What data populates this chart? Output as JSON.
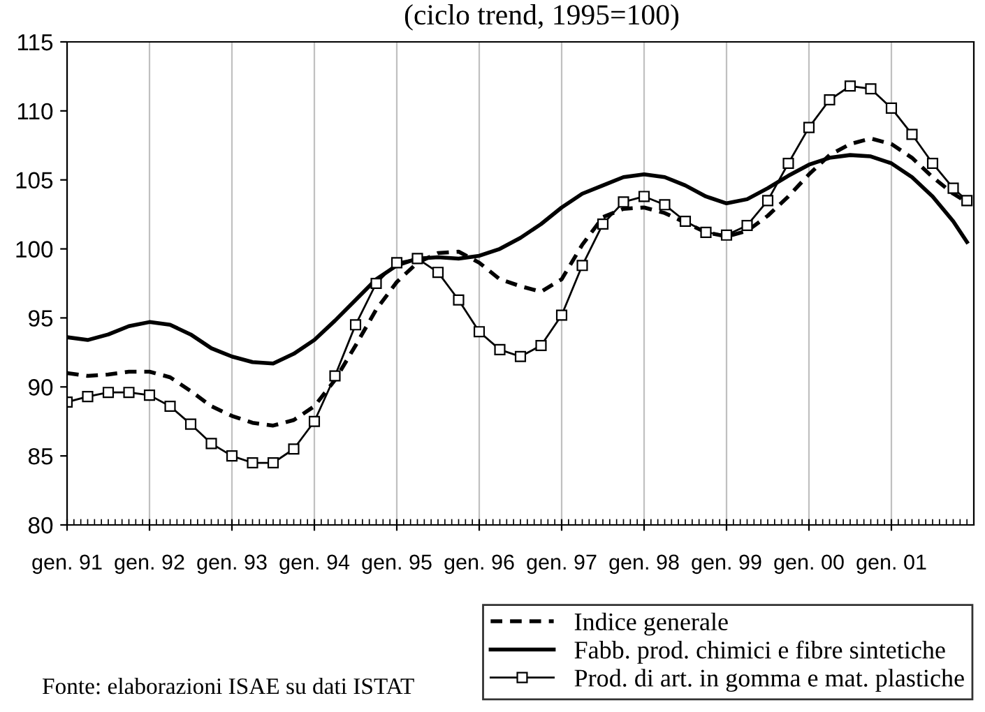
{
  "chart_data": {
    "type": "line",
    "title": "(ciclo trend, 1995=100)",
    "x": [
      "1991-01",
      "1991-04",
      "1991-07",
      "1991-10",
      "1992-01",
      "1992-04",
      "1992-07",
      "1992-10",
      "1993-01",
      "1993-04",
      "1993-07",
      "1993-10",
      "1994-01",
      "1994-04",
      "1994-07",
      "1994-10",
      "1995-01",
      "1995-04",
      "1995-07",
      "1995-10",
      "1996-01",
      "1996-04",
      "1996-07",
      "1996-10",
      "1997-01",
      "1997-04",
      "1997-07",
      "1997-10",
      "1998-01",
      "1998-04",
      "1998-07",
      "1998-10",
      "1999-01",
      "1999-04",
      "1999-07",
      "1999-10",
      "2000-01",
      "2000-04",
      "2000-07",
      "2000-10",
      "2001-01",
      "2001-04",
      "2001-07",
      "2001-10",
      "2001-12"
    ],
    "series": [
      {
        "name": "Indice generale",
        "color": "#000000",
        "line_style": "dashed",
        "marker": "none",
        "values": [
          91.0,
          90.8,
          90.9,
          91.1,
          91.1,
          90.7,
          89.7,
          88.6,
          87.9,
          87.4,
          87.2,
          87.6,
          88.6,
          90.5,
          93.0,
          95.6,
          97.6,
          99.0,
          99.7,
          99.8,
          99.0,
          97.8,
          97.3,
          96.9,
          97.8,
          100.3,
          102.3,
          102.9,
          103.0,
          102.6,
          101.9,
          101.2,
          100.9,
          101.3,
          102.4,
          103.8,
          105.4,
          106.8,
          107.6,
          108.0,
          107.6,
          106.6,
          105.2,
          104.0,
          103.4
        ]
      },
      {
        "name": "Fabb. prod. chimici e fibre sintetiche",
        "color": "#000000",
        "line_style": "solid",
        "marker": "none",
        "values": [
          93.6,
          93.4,
          93.8,
          94.4,
          94.7,
          94.5,
          93.8,
          92.8,
          92.2,
          91.8,
          91.7,
          92.4,
          93.4,
          94.8,
          96.3,
          97.8,
          98.8,
          99.3,
          99.4,
          99.3,
          99.5,
          100.0,
          100.8,
          101.8,
          103.0,
          104.0,
          104.6,
          105.2,
          105.4,
          105.2,
          104.6,
          103.8,
          103.3,
          103.6,
          104.4,
          105.3,
          106.1,
          106.6,
          106.8,
          106.7,
          106.2,
          105.2,
          103.8,
          102.0,
          100.5
        ]
      },
      {
        "name": "Prod. di art. in gomma e mat. plastiche",
        "color": "#000000",
        "line_style": "solid",
        "marker": "square",
        "values": [
          88.9,
          89.3,
          89.6,
          89.6,
          89.4,
          88.6,
          87.3,
          85.9,
          85.0,
          84.5,
          84.5,
          85.5,
          87.5,
          90.8,
          94.5,
          97.5,
          99.0,
          99.3,
          98.3,
          96.3,
          94.0,
          92.7,
          92.2,
          93.0,
          95.2,
          98.8,
          101.8,
          103.4,
          103.8,
          103.2,
          102.0,
          101.2,
          101.0,
          101.7,
          103.5,
          106.2,
          108.8,
          110.8,
          111.8,
          111.6,
          110.2,
          108.3,
          106.2,
          104.4,
          103.5
        ]
      }
    ],
    "xlim": [
      "1991-01",
      "2002-01"
    ],
    "xticks": [
      {
        "value": "1991-01",
        "label": "gen. 91"
      },
      {
        "value": "1992-01",
        "label": "gen. 92"
      },
      {
        "value": "1993-01",
        "label": "gen. 93"
      },
      {
        "value": "1994-01",
        "label": "gen. 94"
      },
      {
        "value": "1995-01",
        "label": "gen. 95"
      },
      {
        "value": "1996-01",
        "label": "gen. 96"
      },
      {
        "value": "1997-01",
        "label": "gen. 97"
      },
      {
        "value": "1998-01",
        "label": "gen. 98"
      },
      {
        "value": "1999-01",
        "label": "gen. 99"
      },
      {
        "value": "2000-01",
        "label": "gen. 00"
      },
      {
        "value": "2001-01",
        "label": "gen. 01"
      }
    ],
    "ylim": [
      80,
      115
    ],
    "yticks": [
      80,
      85,
      90,
      95,
      100,
      105,
      110,
      115
    ],
    "grid": "x",
    "legend": "bottom right",
    "annotations": [
      "Fonte: elaborazioni ISAE su dati ISTAT"
    ]
  }
}
